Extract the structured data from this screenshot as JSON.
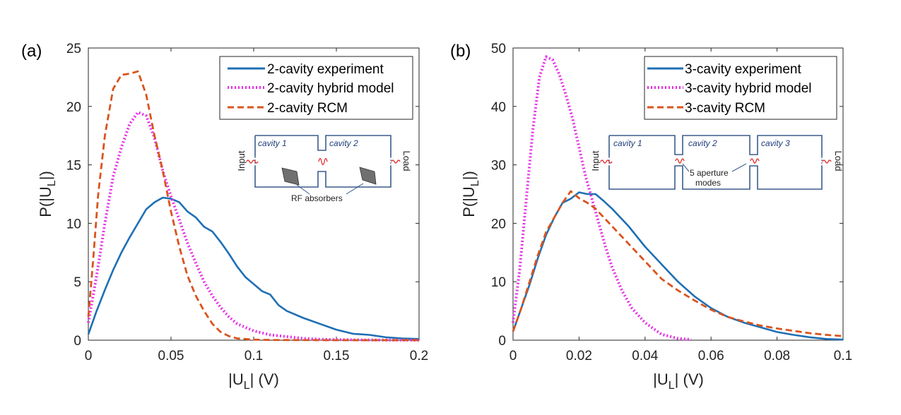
{
  "chart_data": [
    {
      "type": "line",
      "panel_label": "(a)",
      "xlabel_main": "|U",
      "xlabel_sub": "L",
      "xlabel_tail": "| (V)",
      "ylabel_main": "P(|U",
      "ylabel_sub": "L",
      "ylabel_tail": "|)",
      "xlim": [
        0,
        0.2
      ],
      "ylim": [
        0,
        25
      ],
      "xticks": [
        0,
        0.05,
        0.1,
        0.15,
        0.2
      ],
      "xtick_labels": [
        "0",
        "0.05",
        "0.1",
        "0.15",
        "0.2"
      ],
      "yticks": [
        0,
        5,
        10,
        15,
        20,
        25
      ],
      "ytick_labels": [
        "0",
        "5",
        "10",
        "15",
        "20",
        "25"
      ],
      "legend_position": "top-right",
      "series": [
        {
          "name": "2-cavity experiment",
          "color": "#1f6fb4",
          "style": "solid",
          "x": [
            0,
            0.005,
            0.01,
            0.015,
            0.02,
            0.025,
            0.03,
            0.035,
            0.04,
            0.045,
            0.05,
            0.055,
            0.06,
            0.065,
            0.07,
            0.075,
            0.08,
            0.085,
            0.09,
            0.095,
            0.1,
            0.105,
            0.11,
            0.115,
            0.12,
            0.13,
            0.14,
            0.15,
            0.16,
            0.17,
            0.18,
            0.19,
            0.2
          ],
          "y": [
            0.5,
            2.5,
            4.3,
            6.0,
            7.5,
            8.8,
            10.0,
            11.2,
            11.8,
            12.2,
            12.1,
            11.8,
            11.0,
            10.5,
            9.7,
            9.3,
            8.4,
            7.4,
            6.3,
            5.4,
            4.8,
            4.2,
            3.9,
            3.0,
            2.5,
            1.9,
            1.4,
            0.9,
            0.55,
            0.45,
            0.25,
            0.15,
            0.1
          ]
        },
        {
          "name": "2-cavity hybrid model",
          "color": "#e62ee6",
          "style": "dotted",
          "x": [
            0,
            0.005,
            0.01,
            0.015,
            0.02,
            0.025,
            0.03,
            0.035,
            0.04,
            0.045,
            0.05,
            0.055,
            0.06,
            0.065,
            0.07,
            0.075,
            0.08,
            0.085,
            0.09,
            0.1,
            0.11,
            0.12,
            0.13,
            0.14,
            0.15,
            0.17,
            0.2
          ],
          "y": [
            1.5,
            5.5,
            10.0,
            14.0,
            16.5,
            18.5,
            19.5,
            19.2,
            17.3,
            14.5,
            12.3,
            10.3,
            8.3,
            6.6,
            5.0,
            3.8,
            2.8,
            2.0,
            1.4,
            0.8,
            0.45,
            0.3,
            0.15,
            0.08,
            0.05,
            0.02,
            0
          ]
        },
        {
          "name": "2-cavity RCM",
          "color": "#d9541e",
          "style": "dashed",
          "x": [
            0,
            0.003,
            0.006,
            0.01,
            0.015,
            0.02,
            0.025,
            0.03,
            0.035,
            0.04,
            0.045,
            0.05,
            0.055,
            0.06,
            0.065,
            0.07,
            0.075,
            0.08,
            0.085,
            0.09,
            0.1,
            0.11,
            0.12,
            0.15,
            0.2
          ],
          "y": [
            2,
            7,
            12.5,
            17.5,
            21.5,
            22.7,
            22.8,
            23.0,
            21.0,
            17.5,
            14.5,
            11.0,
            8.0,
            5.5,
            3.8,
            2.5,
            1.4,
            0.7,
            0.35,
            0.15,
            0.05,
            0.02,
            0.01,
            0,
            0
          ]
        }
      ],
      "inset": {
        "cavity_labels": [
          "cavity 1",
          "cavity 2"
        ],
        "input_label": "Input",
        "load_label": "Load",
        "note": "RF absorbers"
      }
    },
    {
      "type": "line",
      "panel_label": "(b)",
      "xlabel_main": "|U",
      "xlabel_sub": "L",
      "xlabel_tail": "| (V)",
      "ylabel_main": "P(|U",
      "ylabel_sub": "L",
      "ylabel_tail": "|)",
      "xlim": [
        0,
        0.1
      ],
      "ylim": [
        0,
        50
      ],
      "xticks": [
        0,
        0.02,
        0.04,
        0.06,
        0.08,
        0.1
      ],
      "xtick_labels": [
        "0",
        "0.02",
        "0.04",
        "0.06",
        "0.08",
        "0.1"
      ],
      "yticks": [
        0,
        10,
        20,
        30,
        40,
        50
      ],
      "ytick_labels": [
        "0",
        "10",
        "20",
        "30",
        "40",
        "50"
      ],
      "legend_position": "top-right",
      "series": [
        {
          "name": "3-cavity experiment",
          "color": "#1f6fb4",
          "style": "solid",
          "x": [
            0,
            0.0025,
            0.005,
            0.0075,
            0.01,
            0.0125,
            0.015,
            0.0175,
            0.02,
            0.0225,
            0.025,
            0.0275,
            0.03,
            0.035,
            0.04,
            0.045,
            0.05,
            0.055,
            0.06,
            0.065,
            0.07,
            0.075,
            0.08,
            0.085,
            0.09,
            0.095,
            0.1
          ],
          "y": [
            1.5,
            5.5,
            9.5,
            14,
            18,
            21,
            23.5,
            24.2,
            25.3,
            25.0,
            25.0,
            23.8,
            22.5,
            19.5,
            16.0,
            13.0,
            10.0,
            7.5,
            5.5,
            4.0,
            3.0,
            2.2,
            1.4,
            0.9,
            0.5,
            0.2,
            0.1
          ]
        },
        {
          "name": "3-cavity hybrid model",
          "color": "#e62ee6",
          "style": "dotted",
          "x": [
            0,
            0.002,
            0.004,
            0.006,
            0.008,
            0.01,
            0.012,
            0.014,
            0.016,
            0.018,
            0.02,
            0.022,
            0.024,
            0.026,
            0.028,
            0.03,
            0.033,
            0.036,
            0.04,
            0.045,
            0.05,
            0.054
          ],
          "y": [
            3,
            12,
            24,
            36,
            45,
            48.5,
            48.0,
            45.5,
            42.0,
            38.0,
            33.0,
            28.0,
            24.0,
            20.0,
            16.0,
            12.5,
            8.5,
            5.5,
            3.0,
            1.0,
            0.3,
            0.1
          ]
        },
        {
          "name": "3-cavity RCM",
          "color": "#d9541e",
          "style": "dashed",
          "x": [
            0,
            0.0025,
            0.005,
            0.0075,
            0.01,
            0.0125,
            0.015,
            0.0175,
            0.02,
            0.0225,
            0.025,
            0.03,
            0.035,
            0.04,
            0.045,
            0.05,
            0.055,
            0.06,
            0.065,
            0.07,
            0.075,
            0.08,
            0.085,
            0.09,
            0.095,
            0.1
          ],
          "y": [
            1.5,
            5.5,
            10,
            14.5,
            18.5,
            21.0,
            23.5,
            25.5,
            24.3,
            23.5,
            22.5,
            19.5,
            16.5,
            13.5,
            10.5,
            8.5,
            6.8,
            5.2,
            4.0,
            3.2,
            2.5,
            2.0,
            1.6,
            1.2,
            0.9,
            0.7
          ]
        }
      ],
      "inset": {
        "cavity_labels": [
          "cavity 1",
          "cavity 2",
          "cavity 3"
        ],
        "input_label": "Input",
        "load_label": "Load",
        "note_line1": "5 aperture",
        "note_line2": "modes"
      }
    }
  ]
}
